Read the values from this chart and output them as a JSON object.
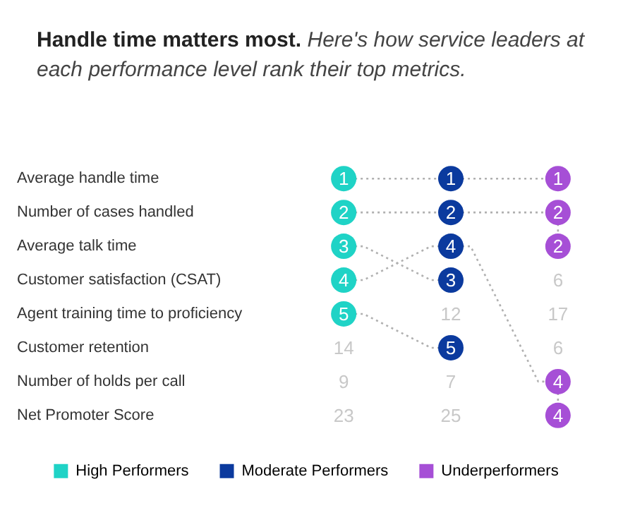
{
  "chart_data": {
    "type": "other",
    "title": "Handle time matters most.",
    "subtitle": "Here's how service leaders at each performance level rank their top metrics.",
    "categories": [
      "Average handle time",
      "Number of cases handled",
      "Average talk time",
      "Customer satisfaction (CSAT)",
      "Agent training time to proficiency",
      "Customer retention",
      "Number of holds per call",
      "Net Promoter Score"
    ],
    "series": [
      {
        "name": "High Performers",
        "color": "#1fd3c6",
        "values": [
          1,
          2,
          3,
          4,
          5,
          14,
          9,
          23
        ],
        "colors": [
          "#1fd3c6",
          "#1fd3c6",
          "#1fd3c6",
          "#1fd3c6",
          "#1fd3c6",
          null,
          null,
          null
        ]
      },
      {
        "name": "Moderate Performers",
        "color": "#0b3a9e",
        "values": [
          1,
          2,
          4,
          3,
          12,
          5,
          7,
          25
        ],
        "colors": [
          "#0b3a9e",
          "#0b3a9e",
          "#0b3a9e",
          "#0b3a9e",
          null,
          "#0b3a9e",
          null,
          null
        ]
      },
      {
        "name": "Underperformers",
        "color": "#a64fd6",
        "values": [
          1,
          2,
          2,
          6,
          17,
          6,
          4,
          4
        ],
        "colors": [
          "#a64fd6",
          "#a64fd6",
          "#a64fd6",
          null,
          null,
          null,
          "#a64fd6",
          "#a64fd6"
        ]
      }
    ],
    "data_labels": true,
    "legend": "bottom"
  }
}
